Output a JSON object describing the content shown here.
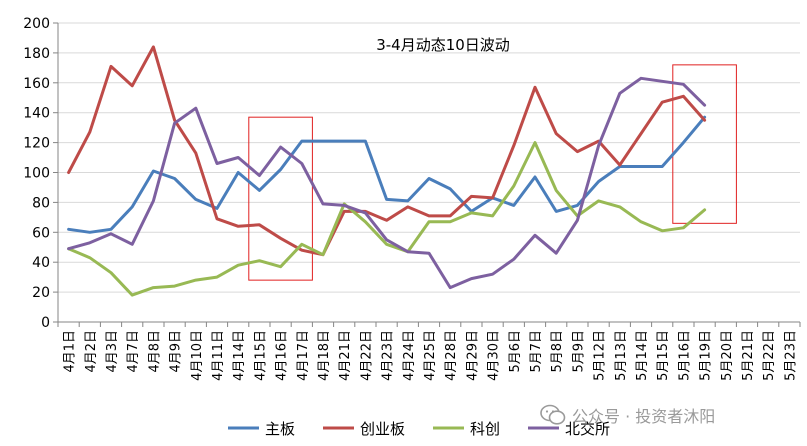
{
  "chart_data": {
    "type": "line",
    "title": "3-4月动态10日波动",
    "xlabel": "",
    "ylabel": "",
    "ylim": [
      0,
      200
    ],
    "yticks": [
      0,
      20,
      40,
      60,
      80,
      100,
      120,
      140,
      160,
      180,
      200
    ],
    "grid": true,
    "legend": "bottom",
    "categories": [
      "4月1日",
      "4月2日",
      "4月3日",
      "4月7日",
      "4月8日",
      "4月9日",
      "4月10日",
      "4月11日",
      "4月14日",
      "4月15日",
      "4月16日",
      "4月17日",
      "4月18日",
      "4月21日",
      "4月22日",
      "4月23日",
      "4月24日",
      "4月25日",
      "4月28日",
      "4月29日",
      "4月30日",
      "5月6日",
      "5月7日",
      "5月8日",
      "5月9日",
      "5月12日",
      "5月13日",
      "5月14日",
      "5月15日",
      "5月16日",
      "5月19日",
      "5月20日",
      "5月21日",
      "5月22日",
      "5月23日"
    ],
    "series": [
      {
        "name": "主板",
        "color": "#4a7ebb",
        "values": [
          62,
          60,
          62,
          77,
          101,
          96,
          82,
          76,
          100,
          88,
          102,
          121,
          121,
          121,
          121,
          82,
          81,
          96,
          89,
          74,
          83,
          78,
          97,
          74,
          78,
          94,
          104,
          104,
          104,
          120,
          137,
          null,
          null,
          null,
          null
        ]
      },
      {
        "name": "创业板",
        "color": "#be4b48",
        "values": [
          100,
          127,
          171,
          158,
          184,
          135,
          113,
          69,
          64,
          65,
          56,
          48,
          45,
          74,
          74,
          68,
          77,
          71,
          71,
          84,
          83,
          118,
          157,
          126,
          114,
          121,
          105,
          126,
          147,
          151,
          135,
          null,
          null,
          null,
          null
        ]
      },
      {
        "name": "科创",
        "color": "#98b954",
        "values": [
          49,
          43,
          33,
          18,
          23,
          24,
          28,
          30,
          38,
          41,
          37,
          52,
          45,
          79,
          67,
          52,
          47,
          67,
          67,
          73,
          71,
          91,
          120,
          88,
          71,
          81,
          77,
          67,
          61,
          63,
          75,
          null,
          null,
          null,
          null
        ]
      },
      {
        "name": "北交所",
        "color": "#7d60a0",
        "values": [
          49,
          53,
          59,
          52,
          81,
          133,
          143,
          106,
          110,
          98,
          117,
          106,
          79,
          78,
          73,
          55,
          47,
          46,
          23,
          29,
          32,
          42,
          58,
          46,
          68,
          118,
          153,
          163,
          161,
          159,
          145,
          null,
          null,
          null,
          null
        ]
      }
    ],
    "highlights": [
      {
        "from_index": 9,
        "to_index": 11,
        "ymin": 28,
        "ymax": 137,
        "color": "#e02020"
      },
      {
        "from_index": 29,
        "to_index": 31,
        "ymin": 66,
        "ymax": 172,
        "color": "#e02020"
      }
    ]
  },
  "watermark": {
    "text": "公众号 · 投资者沐阳"
  }
}
